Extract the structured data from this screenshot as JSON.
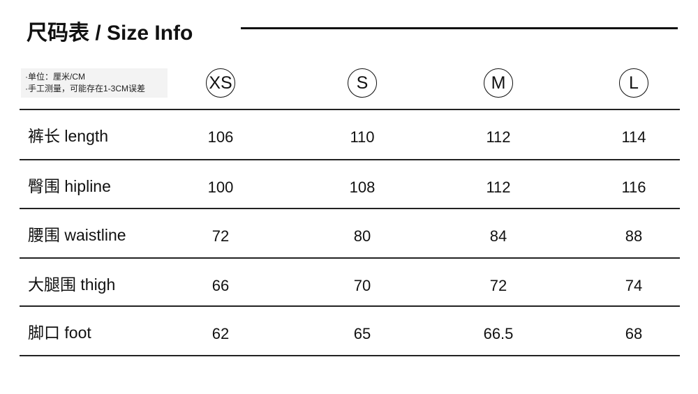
{
  "title": "尺码表 / Size Info",
  "notes": [
    "·单位：厘米/CM",
    "·手工测量，可能存在1-3CM误差"
  ],
  "sizes": [
    "XS",
    "S",
    "M",
    "L"
  ],
  "rows": [
    {
      "label": "裤长 length",
      "values": [
        "106",
        "110",
        "112",
        "114"
      ]
    },
    {
      "label": "臀围 hipline",
      "values": [
        "100",
        "108",
        "112",
        "116"
      ]
    },
    {
      "label": "腰围 waistline",
      "values": [
        "72",
        "80",
        "84",
        "88"
      ]
    },
    {
      "label": "大腿围 thigh",
      "values": [
        "66",
        "70",
        "72",
        "74"
      ]
    },
    {
      "label": "脚口 foot",
      "values": [
        "62",
        "65",
        "66.5",
        "68"
      ]
    }
  ]
}
